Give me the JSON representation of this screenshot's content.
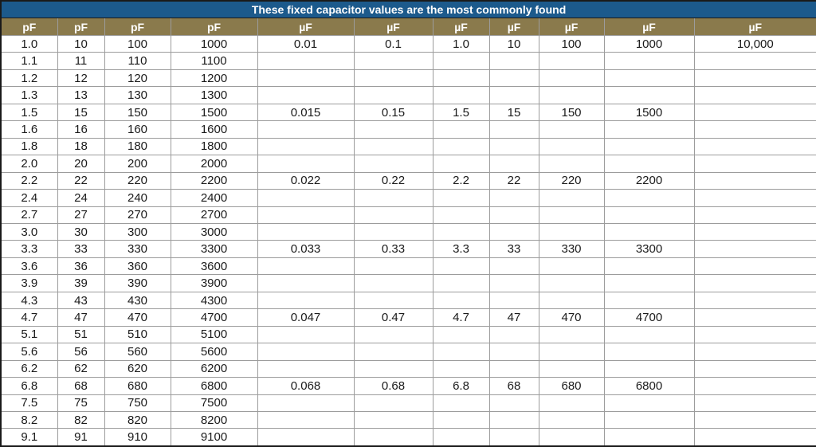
{
  "chart_data": {
    "type": "table",
    "title": "These fixed capacitor values are the most commonly found",
    "columns": [
      "pF",
      "pF",
      "pF",
      "pF",
      "µF",
      "µF",
      "µF",
      "µF",
      "µF",
      "µF",
      "µF"
    ],
    "rows": [
      [
        "1.0",
        "10",
        "100",
        "1000",
        "0.01",
        "0.1",
        "1.0",
        "10",
        "100",
        "1000",
        "10,000"
      ],
      [
        "1.1",
        "11",
        "110",
        "1100",
        "",
        "",
        "",
        "",
        "",
        "",
        ""
      ],
      [
        "1.2",
        "12",
        "120",
        "1200",
        "",
        "",
        "",
        "",
        "",
        "",
        ""
      ],
      [
        "1.3",
        "13",
        "130",
        "1300",
        "",
        "",
        "",
        "",
        "",
        "",
        ""
      ],
      [
        "1.5",
        "15",
        "150",
        "1500",
        "0.015",
        "0.15",
        "1.5",
        "15",
        "150",
        "1500",
        ""
      ],
      [
        "1.6",
        "16",
        "160",
        "1600",
        "",
        "",
        "",
        "",
        "",
        "",
        ""
      ],
      [
        "1.8",
        "18",
        "180",
        "1800",
        "",
        "",
        "",
        "",
        "",
        "",
        ""
      ],
      [
        "2.0",
        "20",
        "200",
        "2000",
        "",
        "",
        "",
        "",
        "",
        "",
        ""
      ],
      [
        "2.2",
        "22",
        "220",
        "2200",
        "0.022",
        "0.22",
        "2.2",
        "22",
        "220",
        "2200",
        ""
      ],
      [
        "2.4",
        "24",
        "240",
        "2400",
        "",
        "",
        "",
        "",
        "",
        "",
        ""
      ],
      [
        "2.7",
        "27",
        "270",
        "2700",
        "",
        "",
        "",
        "",
        "",
        "",
        ""
      ],
      [
        "3.0",
        "30",
        "300",
        "3000",
        "",
        "",
        "",
        "",
        "",
        "",
        ""
      ],
      [
        "3.3",
        "33",
        "330",
        "3300",
        "0.033",
        "0.33",
        "3.3",
        "33",
        "330",
        "3300",
        ""
      ],
      [
        "3.6",
        "36",
        "360",
        "3600",
        "",
        "",
        "",
        "",
        "",
        "",
        ""
      ],
      [
        "3.9",
        "39",
        "390",
        "3900",
        "",
        "",
        "",
        "",
        "",
        "",
        ""
      ],
      [
        "4.3",
        "43",
        "430",
        "4300",
        "",
        "",
        "",
        "",
        "",
        "",
        ""
      ],
      [
        "4.7",
        "47",
        "470",
        "4700",
        "0.047",
        "0.47",
        "4.7",
        "47",
        "470",
        "4700",
        ""
      ],
      [
        "5.1",
        "51",
        "510",
        "5100",
        "",
        "",
        "",
        "",
        "",
        "",
        ""
      ],
      [
        "5.6",
        "56",
        "560",
        "5600",
        "",
        "",
        "",
        "",
        "",
        "",
        ""
      ],
      [
        "6.2",
        "62",
        "620",
        "6200",
        "",
        "",
        "",
        "",
        "",
        "",
        ""
      ],
      [
        "6.8",
        "68",
        "680",
        "6800",
        "0.068",
        "0.68",
        "6.8",
        "68",
        "680",
        "6800",
        ""
      ],
      [
        "7.5",
        "75",
        "750",
        "7500",
        "",
        "",
        "",
        "",
        "",
        "",
        ""
      ],
      [
        "8.2",
        "82",
        "820",
        "8200",
        "",
        "",
        "",
        "",
        "",
        "",
        ""
      ],
      [
        "9.1",
        "91",
        "910",
        "9100",
        "",
        "",
        "",
        "",
        "",
        "",
        ""
      ]
    ],
    "layout": {
      "legend": "none",
      "grid": "on",
      "title_position": "top-center"
    },
    "colors": {
      "title_bg": "#1C5A8C",
      "header_bg": "#8A7A4C",
      "grid": "#9C9C9C",
      "outer_border": "#1A1A1A",
      "text": "#1A1A1A",
      "header_text": "#FFFFFF"
    }
  }
}
